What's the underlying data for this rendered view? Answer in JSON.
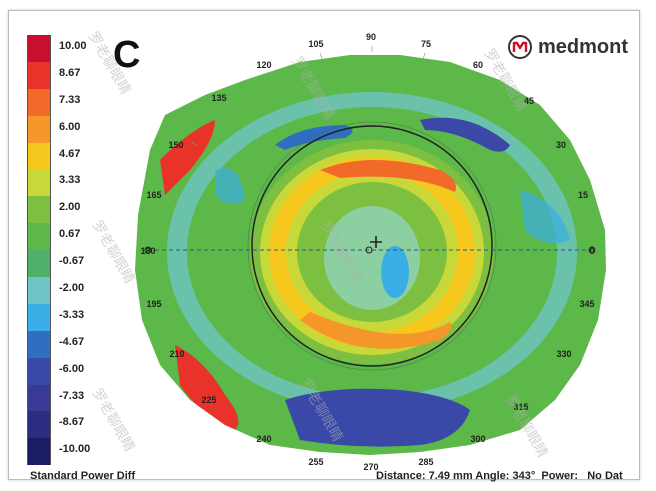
{
  "panel_label": "C",
  "brand": {
    "name": "medmont",
    "logo_icon": "medmont-m-logo"
  },
  "legend": [
    {
      "label": "10.00",
      "color": "#c8102e"
    },
    {
      "label": "8.67",
      "color": "#e8322a"
    },
    {
      "label": "7.33",
      "color": "#f26a2a"
    },
    {
      "label": "6.00",
      "color": "#f5962a"
    },
    {
      "label": "4.67",
      "color": "#f6c81e"
    },
    {
      "label": "3.33",
      "color": "#c8d838"
    },
    {
      "label": "2.00",
      "color": "#7dc041"
    },
    {
      "label": "0.67",
      "color": "#5cb848"
    },
    {
      "label": "-0.67",
      "color": "#4fb06a"
    },
    {
      "label": "-2.00",
      "color": "#6ec4c4"
    },
    {
      "label": "-3.33",
      "color": "#3aaee6"
    },
    {
      "label": "-4.67",
      "color": "#2f6fc0"
    },
    {
      "label": "-6.00",
      "color": "#3a48a8"
    },
    {
      "label": "-7.33",
      "color": "#3a3a96"
    },
    {
      "label": "-8.67",
      "color": "#2c2c80"
    },
    {
      "label": "-10.00",
      "color": "#1c1c66"
    }
  ],
  "angles": [
    "90",
    "75",
    "60",
    "45",
    "30",
    "15",
    "0",
    "345",
    "330",
    "315",
    "300",
    "285",
    "270",
    "255",
    "240",
    "225",
    "210",
    "195",
    "180",
    "165",
    "150",
    "135",
    "120",
    "105"
  ],
  "footer": {
    "left": "Standard Power Diff",
    "right": "Distance: 7.49 mm Angle: 343°  Power:   No Dat"
  },
  "watermark": "罗老聊眼睛"
}
